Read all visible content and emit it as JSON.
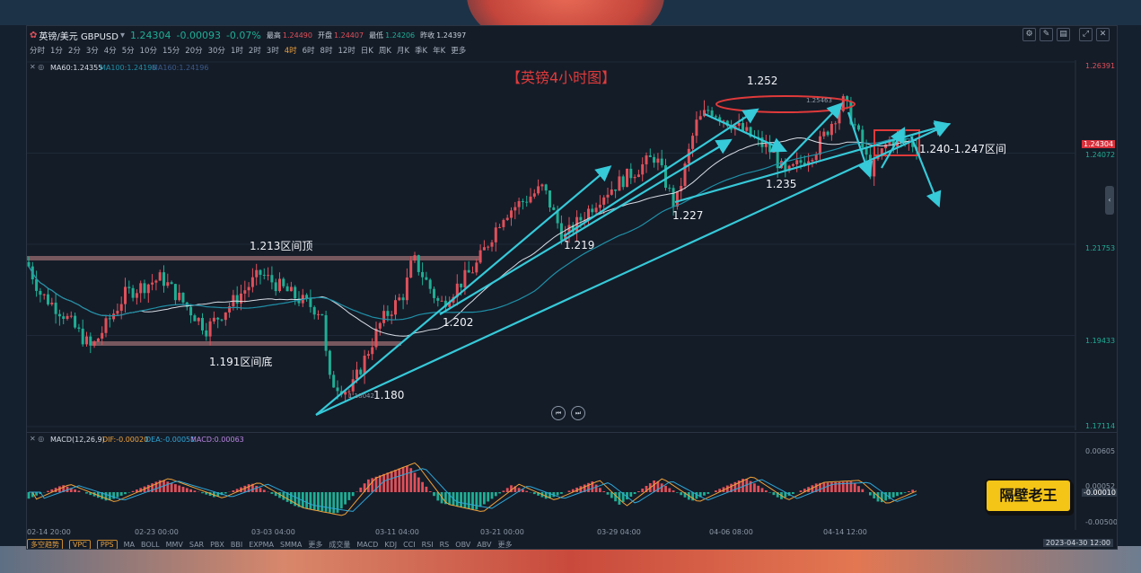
{
  "header": {
    "symbol": "英镑/美元 GBPUSD",
    "price": "1.24304",
    "change": "-0.00093",
    "change_pct": "-0.07%",
    "high_label": "最高",
    "high": "1.24490",
    "open_label": "开盘",
    "open": "1.24407",
    "low_label": "最低",
    "low": "1.24206",
    "prev_label": "昨收",
    "prev": "1.24397"
  },
  "periods": [
    "分时",
    "1分",
    "2分",
    "3分",
    "4分",
    "5分",
    "10分",
    "15分",
    "20分",
    "30分",
    "1时",
    "2时",
    "3时",
    "4时",
    "6时",
    "8时",
    "12时",
    "日K",
    "周K",
    "月K",
    "季K",
    "年K",
    "更多"
  ],
  "active_period": "4时",
  "ma_legend": {
    "ma60": "MA60:1.24355",
    "ma100": "MA100:1.24196",
    "ma160": "MA160:1.24196"
  },
  "chart_title": "【英镑4小时图】",
  "annotations": {
    "top_range": "1.213区间顶",
    "bottom_range": "1.191区间底",
    "low_value": "1.18042",
    "low_label": "1.180",
    "p1202": "1.202",
    "p1219": "1.219",
    "p1227": "1.227",
    "p1235": "1.235",
    "p1252": "1.252",
    "high_value": "1.25463",
    "range_label": "1.240-1.247区间"
  },
  "y_axis": {
    "top": "1.26391",
    "current": "1.24304",
    "ma_price": "1.24072",
    "mid": "1.21753",
    "low": "1.19433",
    "bottom": "1.17114"
  },
  "macd": {
    "legend": "MACD(12,26,9)",
    "dif": "DIF:-0.00020",
    "dea": "DEA:-0.00051",
    "macd_val": "MACD:0.00063",
    "axis": [
      "0.00605",
      "0.00052",
      "-0.00010",
      "-0.00500"
    ]
  },
  "x_axis": [
    "02-14 20:00",
    "02-23 00:00",
    "03-03 04:00",
    "03-11 04:00",
    "03-21 00:00",
    "03-29 04:00",
    "04-06 08:00",
    "04-14 12:00"
  ],
  "date_stamp": "2023-04-30 12:00",
  "bottom_bar": {
    "buttons": [
      "多空趋势",
      "VPC",
      "PPS"
    ],
    "main_indicators": [
      "MA",
      "BOLL",
      "MMV",
      "SAR",
      "PBX",
      "BBI",
      "EXPMA",
      "SMMA",
      "更多"
    ],
    "sub_indicators": [
      "成交量",
      "MACD",
      "KDJ",
      "CCI",
      "RSI",
      "RS",
      "OBV",
      "ABV",
      "更多"
    ]
  },
  "brand": "隔壁老王",
  "colors": {
    "up": "#e0505a",
    "down": "#1fae94",
    "arrow": "#36c9d8",
    "annot": "#e03a3a",
    "accent": "#f0a23a",
    "brand_bg": "#f4c417"
  },
  "icons": [
    "app-logo-icon",
    "dropdown-icon",
    "settings-icon",
    "edit-icon",
    "layout-icon",
    "expand-icon",
    "close-icon",
    "play-back-icon",
    "play-forward-icon"
  ]
}
